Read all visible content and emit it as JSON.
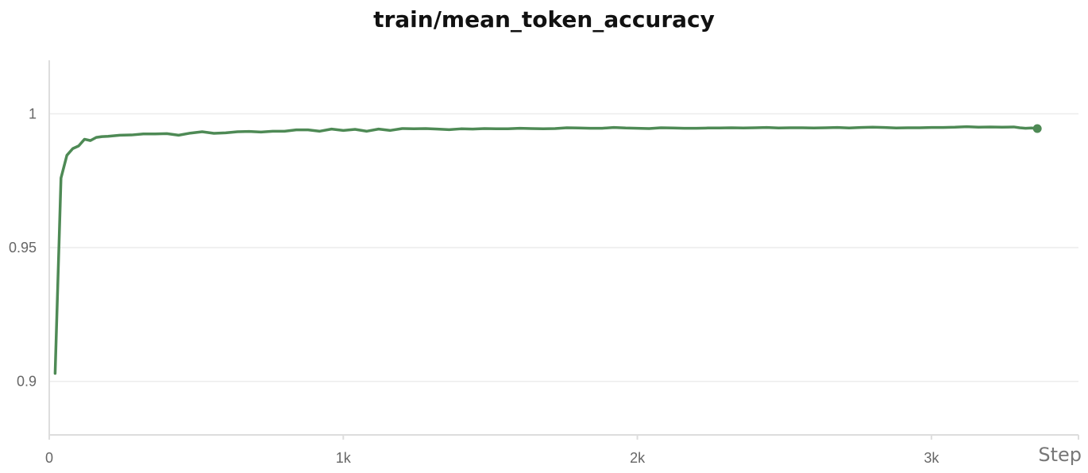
{
  "chart_data": {
    "type": "line",
    "title": "train/mean_token_accuracy",
    "xlabel": "Step",
    "ylabel": "",
    "xlim": [
      0,
      3500
    ],
    "ylim": [
      0.88,
      1.02
    ],
    "x_ticks": [
      0,
      1000,
      2000,
      3000
    ],
    "x_tick_labels": [
      "0",
      "1k",
      "2k",
      "3k"
    ],
    "y_ticks": [
      0.9,
      0.95,
      1
    ],
    "y_tick_labels": [
      "0.9",
      "0.95",
      "1"
    ],
    "grid": true,
    "legend": "none",
    "series_color": "#4e8a55",
    "series": [
      {
        "x": [
          20,
          40,
          60,
          80,
          100,
          120,
          140,
          160,
          180,
          200,
          240,
          280,
          320,
          360,
          400,
          440,
          480,
          520,
          560,
          600,
          640,
          680,
          720,
          760,
          800,
          840,
          880,
          920,
          960,
          1000,
          1040,
          1080,
          1120,
          1160,
          1200,
          1240,
          1280,
          1320,
          1360,
          1400,
          1440,
          1480,
          1520,
          1560,
          1600,
          1640,
          1680,
          1720,
          1760,
          1800,
          1840,
          1880,
          1920,
          1960,
          2000,
          2040,
          2080,
          2120,
          2160,
          2200,
          2240,
          2280,
          2320,
          2360,
          2400,
          2440,
          2480,
          2520,
          2560,
          2600,
          2640,
          2680,
          2720,
          2760,
          2800,
          2840,
          2880,
          2920,
          2960,
          3000,
          3040,
          3080,
          3120,
          3160,
          3200,
          3240,
          3280,
          3300,
          3320,
          3340,
          3360
        ],
        "values": [
          0.903,
          0.976,
          0.9845,
          0.987,
          0.988,
          0.9905,
          0.99,
          0.9912,
          0.9915,
          0.9916,
          0.992,
          0.9921,
          0.9925,
          0.9925,
          0.9926,
          0.992,
          0.9928,
          0.9933,
          0.9927,
          0.9929,
          0.9933,
          0.9934,
          0.9932,
          0.9935,
          0.9935,
          0.994,
          0.994,
          0.9935,
          0.9943,
          0.9938,
          0.9942,
          0.9935,
          0.9943,
          0.9938,
          0.9945,
          0.9944,
          0.9945,
          0.9943,
          0.9941,
          0.9944,
          0.9943,
          0.9945,
          0.9944,
          0.9944,
          0.9946,
          0.9945,
          0.9944,
          0.9945,
          0.9948,
          0.9947,
          0.9946,
          0.9946,
          0.9949,
          0.9947,
          0.9946,
          0.9945,
          0.9948,
          0.9947,
          0.9946,
          0.9946,
          0.9947,
          0.9947,
          0.9948,
          0.9947,
          0.9948,
          0.9949,
          0.9947,
          0.9948,
          0.9948,
          0.9947,
          0.9948,
          0.9949,
          0.9947,
          0.9949,
          0.995,
          0.9949,
          0.9947,
          0.9948,
          0.9948,
          0.9949,
          0.9949,
          0.995,
          0.9952,
          0.995,
          0.9951,
          0.995,
          0.9951,
          0.9948,
          0.9946,
          0.9947,
          0.9945
        ]
      }
    ]
  }
}
